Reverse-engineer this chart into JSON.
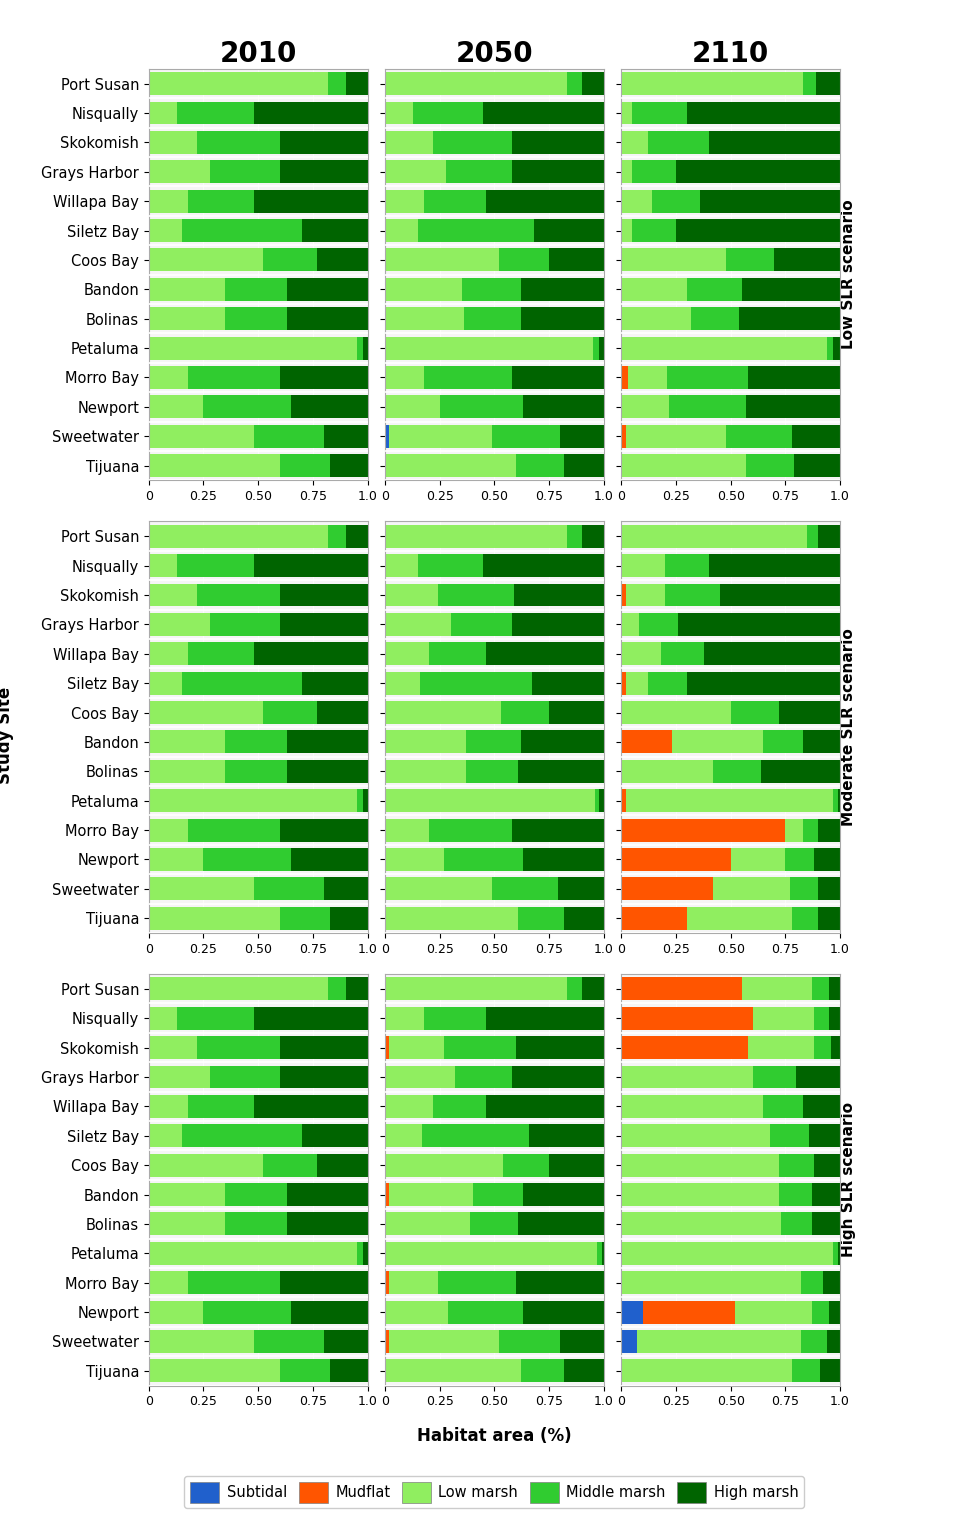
{
  "sites": [
    "Port Susan",
    "Nisqually",
    "Skokomish",
    "Grays Harbor",
    "Willapa Bay",
    "Siletz Bay",
    "Coos Bay",
    "Bandon",
    "Bolinas",
    "Petaluma",
    "Morro Bay",
    "Newport",
    "Sweetwater",
    "Tijuana"
  ],
  "years": [
    "2010",
    "2050",
    "2110"
  ],
  "scenarios": [
    "Low",
    "Moderate",
    "High"
  ],
  "scenario_labels": [
    "Low SLR scenario",
    "Moderate SLR scenario",
    "High SLR scenario"
  ],
  "colors": {
    "subtidal": "#2060CC",
    "mudflat": "#FF5500",
    "low_marsh": "#90EE60",
    "middle_marsh": "#30CC30",
    "high_marsh": "#006400"
  },
  "data": {
    "Low": {
      "2010": [
        [
          0.0,
          0.0,
          0.82,
          0.08,
          0.1
        ],
        [
          0.0,
          0.0,
          0.13,
          0.35,
          0.52
        ],
        [
          0.0,
          0.0,
          0.22,
          0.38,
          0.4
        ],
        [
          0.0,
          0.0,
          0.28,
          0.32,
          0.4
        ],
        [
          0.0,
          0.0,
          0.18,
          0.3,
          0.52
        ],
        [
          0.0,
          0.0,
          0.15,
          0.55,
          0.3
        ],
        [
          0.0,
          0.0,
          0.52,
          0.25,
          0.23
        ],
        [
          0.0,
          0.0,
          0.35,
          0.28,
          0.37
        ],
        [
          0.0,
          0.0,
          0.35,
          0.28,
          0.37
        ],
        [
          0.0,
          0.0,
          0.95,
          0.03,
          0.02
        ],
        [
          0.0,
          0.0,
          0.18,
          0.42,
          0.4
        ],
        [
          0.0,
          0.0,
          0.25,
          0.4,
          0.35
        ],
        [
          0.0,
          0.0,
          0.48,
          0.32,
          0.2
        ],
        [
          0.0,
          0.0,
          0.6,
          0.23,
          0.17
        ]
      ],
      "2050": [
        [
          0.0,
          0.0,
          0.83,
          0.07,
          0.1
        ],
        [
          0.0,
          0.0,
          0.13,
          0.32,
          0.55
        ],
        [
          0.0,
          0.0,
          0.22,
          0.36,
          0.42
        ],
        [
          0.0,
          0.0,
          0.28,
          0.3,
          0.42
        ],
        [
          0.0,
          0.0,
          0.18,
          0.28,
          0.54
        ],
        [
          0.0,
          0.0,
          0.15,
          0.53,
          0.32
        ],
        [
          0.0,
          0.0,
          0.52,
          0.23,
          0.25
        ],
        [
          0.0,
          0.0,
          0.35,
          0.27,
          0.38
        ],
        [
          0.0,
          0.0,
          0.36,
          0.26,
          0.38
        ],
        [
          0.0,
          0.0,
          0.95,
          0.03,
          0.02
        ],
        [
          0.0,
          0.0,
          0.18,
          0.4,
          0.42
        ],
        [
          0.0,
          0.0,
          0.25,
          0.38,
          0.37
        ],
        [
          0.02,
          0.0,
          0.47,
          0.31,
          0.2
        ],
        [
          0.0,
          0.0,
          0.6,
          0.22,
          0.18
        ]
      ],
      "2110": [
        [
          0.0,
          0.0,
          0.83,
          0.06,
          0.11
        ],
        [
          0.0,
          0.0,
          0.05,
          0.25,
          0.7
        ],
        [
          0.0,
          0.0,
          0.12,
          0.28,
          0.6
        ],
        [
          0.0,
          0.0,
          0.05,
          0.2,
          0.75
        ],
        [
          0.0,
          0.0,
          0.14,
          0.22,
          0.64
        ],
        [
          0.0,
          0.0,
          0.05,
          0.2,
          0.75
        ],
        [
          0.0,
          0.0,
          0.48,
          0.22,
          0.3
        ],
        [
          0.0,
          0.0,
          0.3,
          0.25,
          0.45
        ],
        [
          0.0,
          0.0,
          0.32,
          0.22,
          0.46
        ],
        [
          0.0,
          0.0,
          0.94,
          0.03,
          0.03
        ],
        [
          0.0,
          0.03,
          0.18,
          0.37,
          0.42
        ],
        [
          0.0,
          0.0,
          0.22,
          0.35,
          0.43
        ],
        [
          0.0,
          0.02,
          0.46,
          0.3,
          0.22
        ],
        [
          0.0,
          0.0,
          0.57,
          0.22,
          0.21
        ]
      ]
    },
    "Moderate": {
      "2010": [
        [
          0.0,
          0.0,
          0.82,
          0.08,
          0.1
        ],
        [
          0.0,
          0.0,
          0.13,
          0.35,
          0.52
        ],
        [
          0.0,
          0.0,
          0.22,
          0.38,
          0.4
        ],
        [
          0.0,
          0.0,
          0.28,
          0.32,
          0.4
        ],
        [
          0.0,
          0.0,
          0.18,
          0.3,
          0.52
        ],
        [
          0.0,
          0.0,
          0.15,
          0.55,
          0.3
        ],
        [
          0.0,
          0.0,
          0.52,
          0.25,
          0.23
        ],
        [
          0.0,
          0.0,
          0.35,
          0.28,
          0.37
        ],
        [
          0.0,
          0.0,
          0.35,
          0.28,
          0.37
        ],
        [
          0.0,
          0.0,
          0.95,
          0.03,
          0.02
        ],
        [
          0.0,
          0.0,
          0.18,
          0.42,
          0.4
        ],
        [
          0.0,
          0.0,
          0.25,
          0.4,
          0.35
        ],
        [
          0.0,
          0.0,
          0.48,
          0.32,
          0.2
        ],
        [
          0.0,
          0.0,
          0.6,
          0.23,
          0.17
        ]
      ],
      "2050": [
        [
          0.0,
          0.0,
          0.83,
          0.07,
          0.1
        ],
        [
          0.0,
          0.0,
          0.15,
          0.3,
          0.55
        ],
        [
          0.0,
          0.0,
          0.24,
          0.35,
          0.41
        ],
        [
          0.0,
          0.0,
          0.3,
          0.28,
          0.42
        ],
        [
          0.0,
          0.0,
          0.2,
          0.26,
          0.54
        ],
        [
          0.0,
          0.0,
          0.16,
          0.51,
          0.33
        ],
        [
          0.0,
          0.0,
          0.53,
          0.22,
          0.25
        ],
        [
          0.0,
          0.0,
          0.37,
          0.25,
          0.38
        ],
        [
          0.0,
          0.0,
          0.37,
          0.24,
          0.39
        ],
        [
          0.0,
          0.0,
          0.96,
          0.02,
          0.02
        ],
        [
          0.0,
          0.0,
          0.2,
          0.38,
          0.42
        ],
        [
          0.0,
          0.0,
          0.27,
          0.36,
          0.37
        ],
        [
          0.0,
          0.0,
          0.49,
          0.3,
          0.21
        ],
        [
          0.0,
          0.0,
          0.61,
          0.21,
          0.18
        ]
      ],
      "2110": [
        [
          0.0,
          0.0,
          0.85,
          0.05,
          0.1
        ],
        [
          0.0,
          0.0,
          0.2,
          0.2,
          0.6
        ],
        [
          0.0,
          0.02,
          0.18,
          0.25,
          0.55
        ],
        [
          0.0,
          0.0,
          0.08,
          0.18,
          0.74
        ],
        [
          0.0,
          0.0,
          0.18,
          0.2,
          0.62
        ],
        [
          0.0,
          0.02,
          0.1,
          0.18,
          0.7
        ],
        [
          0.0,
          0.0,
          0.5,
          0.22,
          0.28
        ],
        [
          0.0,
          0.23,
          0.42,
          0.18,
          0.17
        ],
        [
          0.0,
          0.0,
          0.42,
          0.22,
          0.36
        ],
        [
          0.0,
          0.02,
          0.95,
          0.02,
          0.01
        ],
        [
          0.0,
          0.75,
          0.08,
          0.07,
          0.1
        ],
        [
          0.0,
          0.5,
          0.25,
          0.13,
          0.12
        ],
        [
          0.0,
          0.42,
          0.35,
          0.13,
          0.1
        ],
        [
          0.0,
          0.3,
          0.48,
          0.12,
          0.1
        ]
      ]
    },
    "High": {
      "2010": [
        [
          0.0,
          0.0,
          0.82,
          0.08,
          0.1
        ],
        [
          0.0,
          0.0,
          0.13,
          0.35,
          0.52
        ],
        [
          0.0,
          0.0,
          0.22,
          0.38,
          0.4
        ],
        [
          0.0,
          0.0,
          0.28,
          0.32,
          0.4
        ],
        [
          0.0,
          0.0,
          0.18,
          0.3,
          0.52
        ],
        [
          0.0,
          0.0,
          0.15,
          0.55,
          0.3
        ],
        [
          0.0,
          0.0,
          0.52,
          0.25,
          0.23
        ],
        [
          0.0,
          0.0,
          0.35,
          0.28,
          0.37
        ],
        [
          0.0,
          0.0,
          0.35,
          0.28,
          0.37
        ],
        [
          0.0,
          0.0,
          0.95,
          0.03,
          0.02
        ],
        [
          0.0,
          0.0,
          0.18,
          0.42,
          0.4
        ],
        [
          0.0,
          0.0,
          0.25,
          0.4,
          0.35
        ],
        [
          0.0,
          0.0,
          0.48,
          0.32,
          0.2
        ],
        [
          0.0,
          0.0,
          0.6,
          0.23,
          0.17
        ]
      ],
      "2050": [
        [
          0.0,
          0.0,
          0.83,
          0.07,
          0.1
        ],
        [
          0.0,
          0.0,
          0.18,
          0.28,
          0.54
        ],
        [
          0.0,
          0.02,
          0.25,
          0.33,
          0.4
        ],
        [
          0.0,
          0.0,
          0.32,
          0.26,
          0.42
        ],
        [
          0.0,
          0.0,
          0.22,
          0.24,
          0.54
        ],
        [
          0.0,
          0.0,
          0.17,
          0.49,
          0.34
        ],
        [
          0.0,
          0.0,
          0.54,
          0.21,
          0.25
        ],
        [
          0.0,
          0.02,
          0.38,
          0.23,
          0.37
        ],
        [
          0.0,
          0.0,
          0.39,
          0.22,
          0.39
        ],
        [
          0.0,
          0.0,
          0.97,
          0.02,
          0.01
        ],
        [
          0.0,
          0.02,
          0.22,
          0.36,
          0.4
        ],
        [
          0.0,
          0.0,
          0.29,
          0.34,
          0.37
        ],
        [
          0.0,
          0.02,
          0.5,
          0.28,
          0.2
        ],
        [
          0.0,
          0.0,
          0.62,
          0.2,
          0.18
        ]
      ],
      "2110": [
        [
          0.0,
          0.55,
          0.32,
          0.08,
          0.05
        ],
        [
          0.0,
          0.6,
          0.28,
          0.07,
          0.05
        ],
        [
          0.0,
          0.58,
          0.3,
          0.08,
          0.04
        ],
        [
          0.0,
          0.0,
          0.6,
          0.2,
          0.2
        ],
        [
          0.0,
          0.0,
          0.65,
          0.18,
          0.17
        ],
        [
          0.0,
          0.0,
          0.68,
          0.18,
          0.14
        ],
        [
          0.0,
          0.0,
          0.72,
          0.16,
          0.12
        ],
        [
          0.0,
          0.0,
          0.72,
          0.15,
          0.13
        ],
        [
          0.0,
          0.0,
          0.73,
          0.14,
          0.13
        ],
        [
          0.0,
          0.0,
          0.97,
          0.02,
          0.01
        ],
        [
          0.0,
          0.0,
          0.82,
          0.1,
          0.08
        ],
        [
          0.1,
          0.42,
          0.35,
          0.08,
          0.05
        ],
        [
          0.07,
          0.0,
          0.75,
          0.12,
          0.06
        ],
        [
          0.0,
          0.0,
          0.78,
          0.13,
          0.09
        ]
      ]
    }
  },
  "title_fontsize": 20,
  "label_fontsize": 11,
  "tick_fontsize": 9,
  "scenario_fontsize": 11,
  "bar_height": 0.78,
  "panel_bg": "#f5f5f5",
  "xticks": [
    0,
    0.25,
    0.5,
    0.75,
    1.0
  ],
  "xticklabels": [
    "0",
    "0.25",
    "0.50",
    "0.75",
    "1.0"
  ]
}
